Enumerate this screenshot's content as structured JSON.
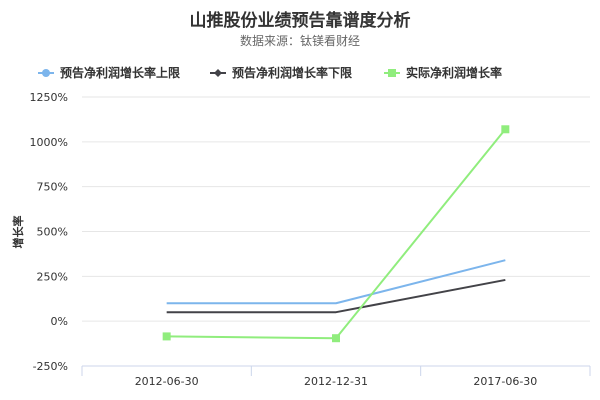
{
  "chart_data": {
    "type": "line",
    "title": "山推股份业绩预告靠谱度分析",
    "subtitle": "数据来源：钛镁看财经",
    "ylabel": "增长率",
    "xlabel": "",
    "categories": [
      "2012-06-30",
      "2012-12-31",
      "2017-06-30"
    ],
    "ylim": [
      -250,
      1250
    ],
    "yticks": [
      -250,
      0,
      250,
      500,
      750,
      1000,
      1250
    ],
    "ytick_labels": [
      "-250%",
      "0%",
      "250%",
      "500%",
      "750%",
      "1000%",
      "1250%"
    ],
    "grid": true,
    "legend_position": "top",
    "series": [
      {
        "name": "预告净利润增长率上限",
        "color": "#7cb5ec",
        "marker": "circle",
        "values": [
          100,
          100,
          340
        ]
      },
      {
        "name": "预告净利润增长率下限",
        "color": "#434348",
        "marker": "diamond",
        "values": [
          50,
          50,
          230
        ]
      },
      {
        "name": "实际净利润增长率",
        "color": "#90ed7d",
        "marker": "square",
        "values": [
          -85,
          -95,
          1070
        ]
      }
    ]
  }
}
